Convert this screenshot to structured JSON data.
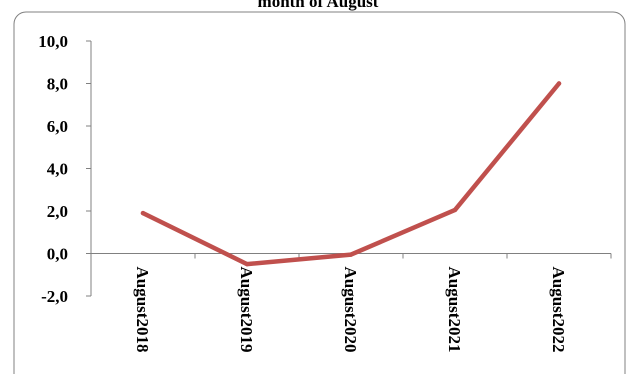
{
  "chart_data": {
    "type": "line",
    "title": "month of August",
    "xlabel": "",
    "ylabel": "",
    "categories": [
      "August2018",
      "August2019",
      "August2020",
      "August2021",
      "August2022"
    ],
    "series": [
      {
        "values": [
          1.9,
          -0.5,
          -0.05,
          2.05,
          8.0
        ]
      }
    ],
    "ylim": [
      -2.0,
      10.0
    ],
    "yticks": [
      -2.0,
      0.0,
      2.0,
      4.0,
      6.0,
      8.0,
      10.0
    ],
    "ytick_labels": [
      "-2,0",
      "0,0",
      "2,0",
      "4,0",
      "6,0",
      "8,0",
      "10,0"
    ],
    "grid": false,
    "legend": "none",
    "colors": {
      "series": "#c0504d",
      "axis": "#808080",
      "border": "#808080"
    }
  }
}
